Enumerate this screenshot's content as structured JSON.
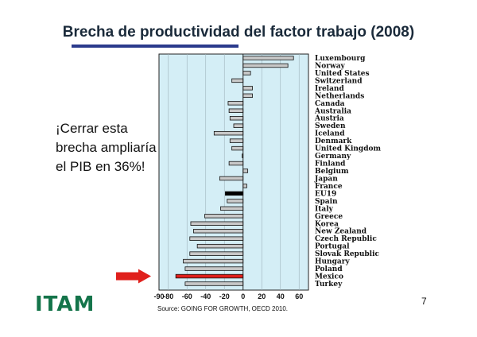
{
  "slide": {
    "title": "Brecha de productividad del factor trabajo (2008)",
    "callout": "¡Cerrar esta brecha ampliaría el PIB en 36%!",
    "logo": "ITAM",
    "source": "Source: GOING FOR GROWTH, OECD 2010.",
    "page_number": "7"
  },
  "colors": {
    "plot_background": "#d4eef6",
    "bar_default": "#c8c8c8",
    "bar_outline": "#111111",
    "bar_eu19": "#000000",
    "bar_mexico": "#e0201c",
    "arrow": "#e0201c",
    "logo": "#14744a",
    "title_rule": "#2a3a8c"
  },
  "chart_data": {
    "type": "bar",
    "orientation": "horizontal",
    "title": "",
    "xlabel": "",
    "ylabel": "",
    "xlim": [
      -90,
      70
    ],
    "xticks": [
      -90,
      -80,
      -60,
      -40,
      -20,
      0,
      20,
      40,
      60
    ],
    "grid": true,
    "legend": "none",
    "highlighted_category": "Mexico",
    "categories": [
      "Luxembourg",
      "Norway",
      "United States",
      "Switzerland",
      "Ireland",
      "Netherlands",
      "Canada",
      "Australia",
      "Austria",
      "Sweden",
      "Iceland",
      "Denmark",
      "United Kingdom",
      "Germany",
      "Finland",
      "Belgium",
      "Japan",
      "France",
      "EU19",
      "Spain",
      "Italy",
      "Greece",
      "Korea",
      "New Zealand",
      "Czech Republic",
      "Portugal",
      "Slovak Republic",
      "Hungary",
      "Poland",
      "Mexico",
      "Turkey"
    ],
    "category_labels": [
      "Luxembourg",
      "Norway",
      "United States",
      "Switzerland",
      "Ireland",
      "Netherlands",
      "Canada",
      "Australia",
      "Austria",
      "Sweden",
      "Iceland",
      "Denmark",
      "United Kingdom",
      "Germany",
      "Finland",
      "Belgium",
      "Japan",
      "France",
      "EU19",
      "Spain",
      "Italy",
      "Greece",
      "Korea",
      "New Zealand",
      "Czech Republic",
      "Portugal",
      "Slovak Republic",
      "Hungary",
      "Poland",
      "Mexico",
      "Turkey"
    ],
    "values": [
      54,
      48,
      8,
      -12,
      10,
      10,
      -16,
      -15,
      -14,
      -10,
      -31,
      -14,
      -12,
      -1,
      -15,
      5,
      -25,
      4,
      -19,
      -17,
      -24,
      -41,
      -56,
      -53,
      -57,
      -49,
      -57,
      -64,
      -62,
      -72,
      -62
    ]
  }
}
